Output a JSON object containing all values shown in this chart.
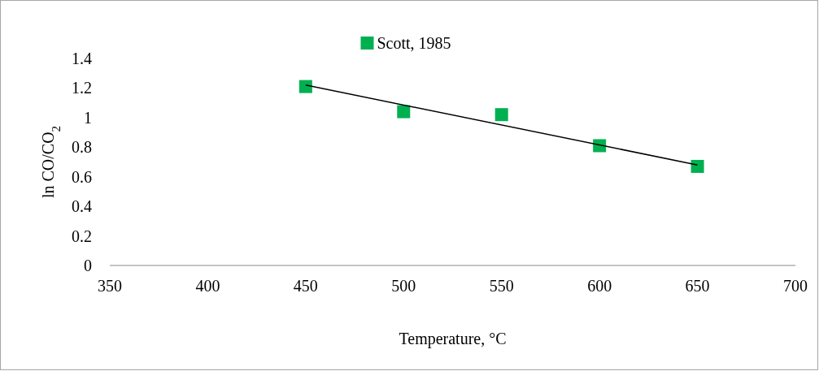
{
  "chart_data": {
    "type": "scatter",
    "xlabel": "Temperature, °C",
    "ylabel": "ln  CO/CO$_{2}$",
    "x": [
      450,
      500,
      550,
      600,
      650
    ],
    "series": [
      {
        "name": "Scott, 1985",
        "color": "#00b050",
        "values": [
          1.21,
          1.04,
          1.02,
          0.81,
          0.67
        ],
        "marker": "square"
      },
      {
        "type": "line",
        "color": "#000000",
        "x": [
          450,
          650
        ],
        "values": [
          1.22,
          0.68
        ]
      }
    ],
    "xlim": [
      350,
      700
    ],
    "xticks": [
      350,
      400,
      450,
      500,
      550,
      600,
      650,
      700
    ],
    "ylim": [
      0,
      1.4
    ],
    "yticks": [
      0,
      0.2,
      0.4,
      0.6,
      0.8,
      1,
      1.2,
      1.4
    ],
    "grid": false,
    "legend": "top"
  }
}
